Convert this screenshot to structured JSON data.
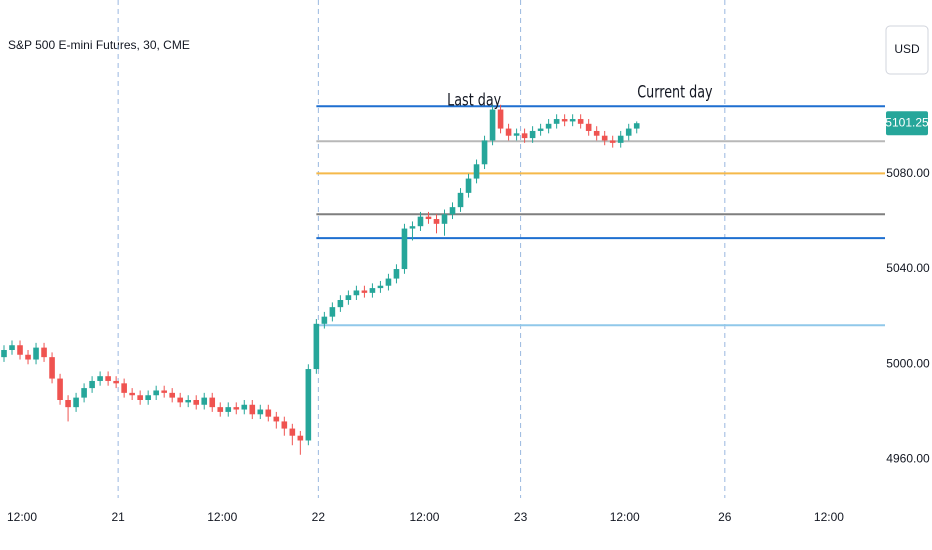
{
  "chart_data": {
    "type": "candlestick",
    "title": "S&P 500 E-mini Futures, 30, CME",
    "currency": "USD",
    "last_price": 5101.25,
    "up_color": "#26a69a",
    "down_color": "#ef5350",
    "open": [
      5003,
      5006,
      5008,
      5004,
      5002,
      5007,
      5003,
      4994,
      4985,
      4982,
      4986,
      4990,
      4993,
      4995,
      4993,
      4992,
      4988,
      4987,
      4985,
      4987,
      4989,
      4988,
      4986,
      4984,
      4985,
      4983,
      4986,
      4982,
      4980,
      4982,
      4981,
      4983,
      4979,
      4981,
      4978,
      4976,
      4973,
      4970,
      4968,
      4998,
      5017,
      5020,
      5024,
      5027,
      5029,
      5031,
      5030,
      5032,
      5033,
      5036,
      5040,
      5057,
      5058,
      5062,
      5061,
      5059,
      5063,
      5066,
      5072,
      5078,
      5084,
      5094,
      5107,
      5099,
      5096,
      5097,
      5095,
      5098,
      5099,
      5101,
      5103,
      5102,
      5103,
      5101,
      5098,
      5096,
      5094,
      5093,
      5096,
      5099
    ],
    "high": [
      5008,
      5010,
      5010,
      5006,
      5009,
      5009,
      5005,
      4996,
      4987,
      4988,
      4992,
      4995,
      4997,
      4997,
      4995,
      4994,
      4990,
      4989,
      4989,
      4991,
      4991,
      4990,
      4988,
      4987,
      4987,
      4988,
      4988,
      4984,
      4984,
      4984,
      4985,
      4985,
      4983,
      4983,
      4980,
      4978,
      4975,
      4972,
      5000,
      5019,
      5022,
      5026,
      5029,
      5031,
      5033,
      5033,
      5034,
      5035,
      5038,
      5042,
      5059,
      5060,
      5064,
      5064,
      5063,
      5065,
      5068,
      5074,
      5080,
      5086,
      5096,
      5109,
      5109,
      5101,
      5099,
      5099,
      5100,
      5101,
      5103,
      5105,
      5105,
      5105,
      5105,
      5103,
      5100,
      5098,
      5096,
      5098,
      5101,
      5102
    ],
    "low": [
      5001,
      5004,
      5002,
      5000,
      5000,
      5001,
      4992,
      4983,
      4976,
      4980,
      4984,
      4988,
      4991,
      4991,
      4990,
      4986,
      4985,
      4983,
      4983,
      4985,
      4986,
      4984,
      4982,
      4982,
      4981,
      4981,
      4980,
      4978,
      4978,
      4979,
      4979,
      4977,
      4977,
      4976,
      4973,
      4970,
      4966,
      4962,
      4966,
      4996,
      5015,
      5018,
      5022,
      5025,
      5027,
      5028,
      5028,
      5030,
      5031,
      5034,
      5038,
      5052,
      5056,
      5059,
      5055,
      5054,
      5061,
      5064,
      5070,
      5076,
      5082,
      5092,
      5097,
      5094,
      5094,
      5093,
      5093,
      5096,
      5097,
      5099,
      5100,
      5100,
      5099,
      5096,
      5094,
      5092,
      5091,
      5091,
      5094,
      5097
    ],
    "close": [
      5006,
      5008,
      5004,
      5002,
      5007,
      5003,
      4994,
      4985,
      4982,
      4986,
      4990,
      4993,
      4995,
      4993,
      4992,
      4988,
      4987,
      4985,
      4987,
      4989,
      4988,
      4986,
      4984,
      4985,
      4983,
      4986,
      4982,
      4980,
      4982,
      4981,
      4983,
      4979,
      4981,
      4978,
      4976,
      4973,
      4970,
      4968,
      4998,
      5017,
      5020,
      5024,
      5027,
      5029,
      5031,
      5030,
      5032,
      5033,
      5036,
      5040,
      5057,
      5058,
      5062,
      5061,
      5059,
      5063,
      5066,
      5072,
      5078,
      5084,
      5094,
      5107,
      5099,
      5096,
      5097,
      5095,
      5098,
      5099,
      5101,
      5103,
      5102,
      5103,
      5101,
      5098,
      5096,
      5094,
      5093,
      5096,
      5099,
      5101.25
    ],
    "levels": [
      {
        "value": 5108.4,
        "color": "#1e6fd0"
      },
      {
        "value": 5093.7,
        "color": "#b8b8b8"
      },
      {
        "value": 5080.2,
        "color": "#f5b94a"
      },
      {
        "value": 5063,
        "color": "#7f7f7f"
      },
      {
        "value": 5053,
        "color": "#1e6fd0"
      },
      {
        "value": 5016.4,
        "color": "#90c8ea"
      }
    ],
    "levels_start": 39,
    "annotations": [
      {
        "text": "Last day",
        "x": 51.5,
        "y": 5104
      },
      {
        "text": "Current  day",
        "x": 73.5,
        "y": 5108
      }
    ],
    "xlim": [
      -0.5,
      110
    ],
    "xticks": [
      {
        "value": 2.25,
        "label": "12:00"
      },
      {
        "value": 14.25,
        "label": "21"
      },
      {
        "value": 27.25,
        "label": "12:00"
      },
      {
        "value": 39.25,
        "label": "22"
      },
      {
        "value": 52.5,
        "label": "12:00"
      },
      {
        "value": 64.5,
        "label": "23"
      },
      {
        "value": 77.5,
        "label": "12:00"
      },
      {
        "value": 90,
        "label": "26"
      },
      {
        "value": 103,
        "label": "12:00"
      }
    ],
    "ylim": [
      4943,
      5153
    ],
    "yticks": [
      {
        "value": 4960,
        "label": "4960.00"
      },
      {
        "value": 5000,
        "label": "5000.00"
      },
      {
        "value": 5040,
        "label": "5040.00"
      },
      {
        "value": 5080,
        "label": "5080.00"
      }
    ]
  }
}
